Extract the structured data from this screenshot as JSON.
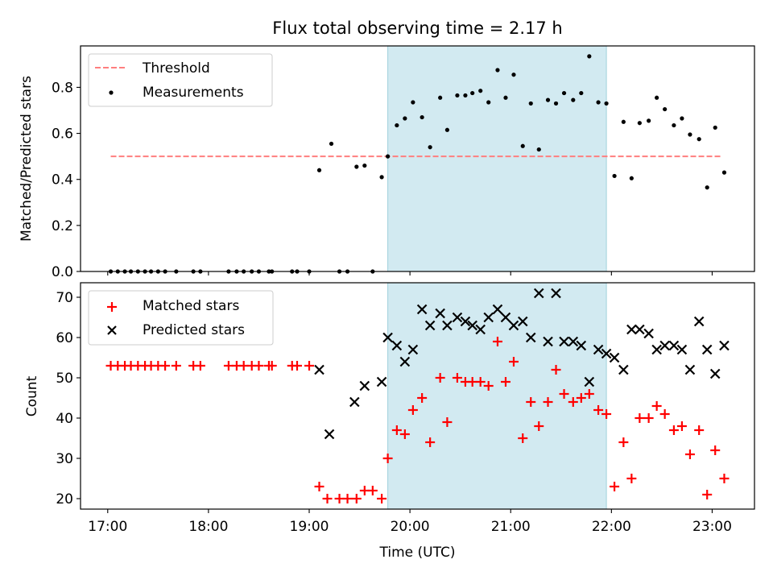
{
  "chart_data": [
    {
      "type": "scatter",
      "title": "Flux total observing time = 2.17 h",
      "ylabel": "Matched/Predicted stars",
      "xlim_hours": [
        16.73,
        23.42
      ],
      "ylim": [
        0.0,
        0.98
      ],
      "yticks": [
        0.0,
        0.2,
        0.4,
        0.6,
        0.8
      ],
      "ytick_labels": [
        "0.0",
        "0.2",
        "0.4",
        "0.6",
        "0.8"
      ],
      "shaded_span_hours": [
        19.78,
        21.95
      ],
      "legend_position": "upper left",
      "series": [
        {
          "name": "Threshold",
          "style": "dashed-line",
          "color": "#ff7f7f",
          "x_hours": [
            17.03,
            23.1
          ],
          "values": [
            0.5,
            0.5
          ]
        },
        {
          "name": "Measurements",
          "style": "dot",
          "color": "#000000",
          "x_hours": [
            17.03,
            17.1,
            17.17,
            17.23,
            17.3,
            17.37,
            17.43,
            17.5,
            17.57,
            17.68,
            17.85,
            17.92,
            18.2,
            18.28,
            18.35,
            18.43,
            18.5,
            18.6,
            18.63,
            18.83,
            18.88,
            19.0,
            19.1,
            19.22,
            19.3,
            19.38,
            19.47,
            19.55,
            19.63,
            19.72,
            19.78,
            19.87,
            19.95,
            20.03,
            20.12,
            20.2,
            20.3,
            20.37,
            20.47,
            20.55,
            20.62,
            20.7,
            20.78,
            20.87,
            20.95,
            21.03,
            21.12,
            21.2,
            21.28,
            21.37,
            21.45,
            21.53,
            21.62,
            21.7,
            21.78,
            21.87,
            21.95,
            22.03,
            22.12,
            22.2,
            22.28,
            22.37,
            22.45,
            22.53,
            22.62,
            22.7,
            22.78,
            22.87,
            22.95,
            23.03,
            23.12
          ],
          "values": [
            0,
            0,
            0,
            0,
            0,
            0,
            0,
            0,
            0,
            0,
            0,
            0,
            0,
            0,
            0,
            0,
            0,
            0,
            0,
            0,
            0,
            0,
            0.44,
            0.555,
            0,
            0,
            0.455,
            0.46,
            0,
            0.41,
            0.5,
            0.635,
            0.665,
            0.735,
            0.67,
            0.54,
            0.755,
            0.615,
            0.765,
            0.765,
            0.775,
            0.785,
            0.735,
            0.875,
            0.755,
            0.855,
            0.545,
            0.73,
            0.53,
            0.745,
            0.73,
            0.775,
            0.745,
            0.775,
            0.935,
            0.735,
            0.73,
            0.415,
            0.65,
            0.405,
            0.645,
            0.655,
            0.755,
            0.705,
            0.635,
            0.665,
            0.595,
            0.575,
            0.365,
            0.625,
            0.43
          ]
        }
      ]
    },
    {
      "type": "scatter",
      "xlabel": "Time (UTC)",
      "ylabel": "Count",
      "xlim_hours": [
        16.73,
        23.42
      ],
      "ylim": [
        17.4,
        73.6
      ],
      "yticks": [
        20,
        30,
        40,
        50,
        60,
        70
      ],
      "ytick_labels": [
        "20",
        "30",
        "40",
        "50",
        "60",
        "70"
      ],
      "xticks_hours": [
        17,
        18,
        19,
        20,
        21,
        22,
        23
      ],
      "xtick_labels": [
        "17:00",
        "18:00",
        "19:00",
        "20:00",
        "21:00",
        "22:00",
        "23:00"
      ],
      "shaded_span_hours": [
        19.78,
        21.95
      ],
      "legend_position": "upper left",
      "series": [
        {
          "name": "Matched stars",
          "style": "plus",
          "color": "#ff0000",
          "x_hours": [
            17.03,
            17.1,
            17.17,
            17.23,
            17.3,
            17.37,
            17.43,
            17.5,
            17.57,
            17.68,
            17.85,
            17.92,
            18.2,
            18.28,
            18.35,
            18.43,
            18.5,
            18.6,
            18.63,
            18.83,
            18.88,
            19.0,
            19.1,
            19.18,
            19.3,
            19.38,
            19.47,
            19.55,
            19.63,
            19.72,
            19.78,
            19.87,
            19.95,
            20.03,
            20.12,
            20.2,
            20.3,
            20.37,
            20.47,
            20.55,
            20.62,
            20.7,
            20.78,
            20.87,
            20.95,
            21.03,
            21.12,
            21.2,
            21.28,
            21.37,
            21.45,
            21.53,
            21.62,
            21.7,
            21.78,
            21.87,
            21.95,
            22.03,
            22.12,
            22.2,
            22.28,
            22.37,
            22.45,
            22.53,
            22.62,
            22.7,
            22.78,
            22.87,
            22.95,
            23.03,
            23.12
          ],
          "values": [
            53,
            53,
            53,
            53,
            53,
            53,
            53,
            53,
            53,
            53,
            53,
            53,
            53,
            53,
            53,
            53,
            53,
            53,
            53,
            53,
            53,
            53,
            23,
            20,
            20,
            20,
            20,
            22,
            22,
            20,
            30,
            37,
            36,
            42,
            45,
            34,
            50,
            39,
            50,
            49,
            49,
            49,
            48,
            59,
            49,
            54,
            35,
            44,
            38,
            44,
            52,
            46,
            44,
            45,
            46,
            42,
            41,
            23,
            34,
            25,
            40,
            40,
            43,
            41,
            37,
            38,
            31,
            37,
            21,
            32,
            25
          ]
        },
        {
          "name": "Predicted stars",
          "style": "x",
          "color": "#000000",
          "x_hours": [
            19.1,
            19.2,
            19.45,
            19.55,
            19.72,
            19.78,
            19.87,
            19.95,
            20.03,
            20.12,
            20.2,
            20.3,
            20.37,
            20.47,
            20.55,
            20.62,
            20.7,
            20.78,
            20.87,
            20.95,
            21.03,
            21.12,
            21.2,
            21.28,
            21.37,
            21.45,
            21.53,
            21.62,
            21.7,
            21.78,
            21.87,
            21.95,
            22.03,
            22.12,
            22.2,
            22.28,
            22.37,
            22.45,
            22.53,
            22.62,
            22.7,
            22.78,
            22.87,
            22.95,
            23.03,
            23.12
          ],
          "values": [
            52,
            36,
            44,
            48,
            49,
            60,
            58,
            54,
            57,
            67,
            63,
            66,
            63,
            65,
            64,
            63,
            62,
            65,
            67,
            65,
            63,
            64,
            60,
            71,
            59,
            71,
            59,
            59,
            58,
            49,
            57,
            56,
            55,
            52,
            62,
            62,
            61,
            57,
            58,
            58,
            57,
            52,
            64,
            57,
            51,
            58
          ]
        }
      ]
    }
  ],
  "colors": {
    "shade": "#add8e6",
    "shade_edge": "#9fd0dc",
    "threshold": "#ff7f7f",
    "matched": "#ff0000",
    "predicted": "#000000"
  }
}
